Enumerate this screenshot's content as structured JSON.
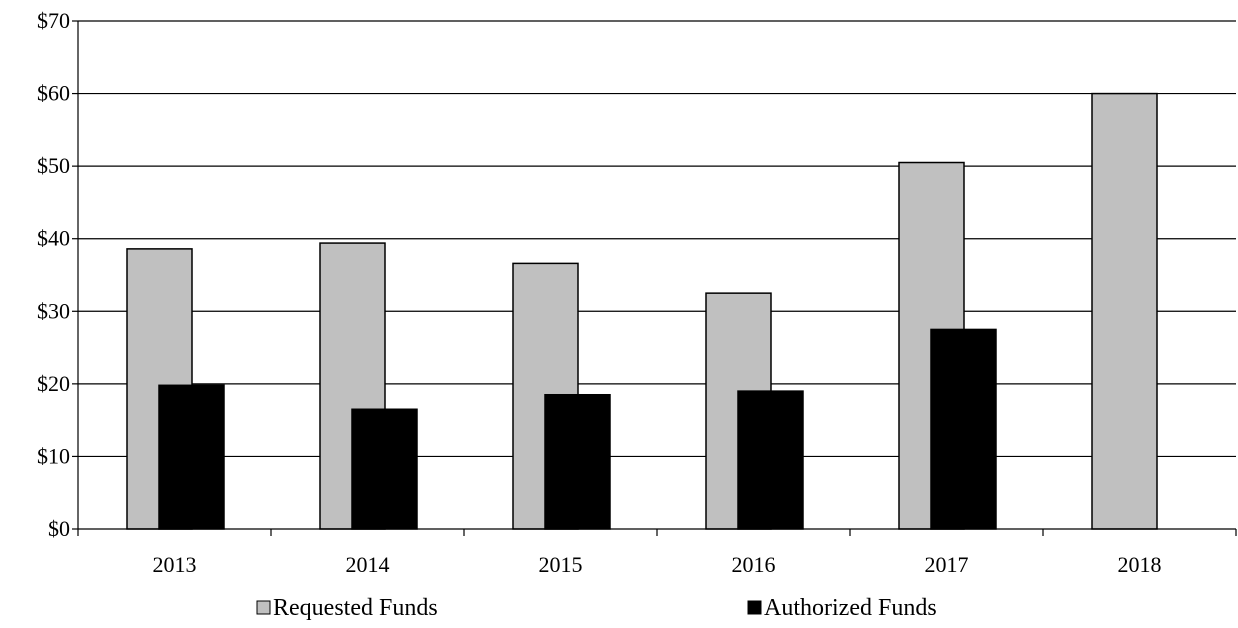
{
  "chart_data": {
    "type": "bar",
    "categories": [
      "2013",
      "2014",
      "2015",
      "2016",
      "2017",
      "2018"
    ],
    "series": [
      {
        "name": "Requested Funds",
        "values": [
          38.6,
          39.4,
          36.6,
          32.5,
          50.5,
          60.0
        ],
        "color": "#c0c0c0"
      },
      {
        "name": "Authorized Funds",
        "values": [
          19.8,
          16.5,
          18.5,
          19.0,
          27.5,
          null
        ],
        "color": "#000000"
      }
    ],
    "ylim": [
      0,
      70
    ],
    "yticks": [
      0,
      10,
      20,
      30,
      40,
      50,
      60,
      70
    ],
    "ytick_labels": [
      "$0",
      "$10",
      "$20",
      "$30",
      "$40",
      "$50",
      "$60",
      "$70"
    ],
    "grid": true,
    "legend_position": "bottom",
    "title": "",
    "xlabel": "",
    "ylabel": ""
  }
}
